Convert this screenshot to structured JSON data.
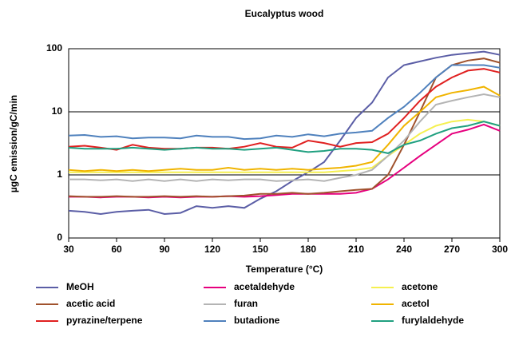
{
  "chart_data": {
    "type": "line",
    "title": "Eucalyptus wood",
    "x_label": "Temperature (°C)",
    "y_label": "µgC emission/gC/min",
    "x": [
      30,
      40,
      50,
      60,
      70,
      80,
      90,
      100,
      110,
      120,
      130,
      140,
      150,
      160,
      170,
      180,
      190,
      200,
      210,
      220,
      230,
      240,
      250,
      260,
      270,
      280,
      290,
      300
    ],
    "xlim": [
      30,
      300
    ],
    "xticks": [
      30,
      60,
      90,
      120,
      150,
      180,
      210,
      240,
      270,
      300
    ],
    "ylim": [
      0.1,
      100
    ],
    "yticks": [
      {
        "value": 0.1,
        "label": "0"
      },
      1,
      10,
      100
    ],
    "log_y": true,
    "grid": true,
    "series": [
      {
        "name": "MeOH",
        "color": "#5b5ea6",
        "values": [
          0.27,
          0.26,
          0.24,
          0.26,
          0.27,
          0.28,
          0.24,
          0.25,
          0.32,
          0.3,
          0.32,
          0.3,
          0.42,
          0.55,
          0.8,
          1.1,
          1.6,
          3.5,
          8,
          14,
          35,
          55,
          63,
          72,
          80,
          85,
          90,
          80
        ]
      },
      {
        "name": "acetaldehyde",
        "color": "#e6007e",
        "values": [
          0.45,
          0.45,
          0.44,
          0.45,
          0.45,
          0.44,
          0.45,
          0.44,
          0.45,
          0.45,
          0.46,
          0.45,
          0.46,
          0.48,
          0.5,
          0.5,
          0.5,
          0.5,
          0.52,
          0.6,
          0.85,
          1.3,
          2,
          3,
          4.5,
          5.2,
          6.3,
          5
        ]
      },
      {
        "name": "acetone",
        "color": "#f5f050",
        "values": [
          1.1,
          1.1,
          1.1,
          1.1,
          1.1,
          1.1,
          1.1,
          1.1,
          1.1,
          1.1,
          1.1,
          1.1,
          1.1,
          1.1,
          1.1,
          1.1,
          1.1,
          1.15,
          1.2,
          1.3,
          2,
          3,
          4.5,
          6,
          7,
          7.5,
          7,
          6
        ]
      },
      {
        "name": "acetic acid",
        "color": "#a0522d",
        "values": [
          0.46,
          0.45,
          0.45,
          0.46,
          0.45,
          0.45,
          0.46,
          0.45,
          0.46,
          0.45,
          0.46,
          0.47,
          0.5,
          0.5,
          0.52,
          0.5,
          0.52,
          0.55,
          0.58,
          0.6,
          1,
          3,
          10,
          35,
          55,
          65,
          70,
          60
        ]
      },
      {
        "name": "furan",
        "color": "#b4b4b4",
        "values": [
          0.85,
          0.85,
          0.82,
          0.85,
          0.8,
          0.85,
          0.8,
          0.85,
          0.8,
          0.85,
          0.82,
          0.85,
          0.85,
          0.8,
          0.82,
          0.85,
          0.8,
          0.9,
          1,
          1.2,
          2,
          3.5,
          7,
          13,
          15,
          17,
          19,
          17
        ]
      },
      {
        "name": "acetol",
        "color": "#f0b400",
        "values": [
          1.2,
          1.15,
          1.2,
          1.15,
          1.2,
          1.15,
          1.2,
          1.25,
          1.2,
          1.2,
          1.3,
          1.2,
          1.25,
          1.2,
          1.25,
          1.2,
          1.25,
          1.3,
          1.4,
          1.6,
          3,
          6,
          10,
          17,
          20,
          22,
          25,
          18
        ]
      },
      {
        "name": "pyrazine/terpene",
        "color": "#e02020",
        "values": [
          2.8,
          2.9,
          2.7,
          2.5,
          3,
          2.7,
          2.6,
          2.6,
          2.7,
          2.7,
          2.6,
          2.8,
          3.2,
          2.8,
          2.7,
          3.5,
          3.2,
          2.8,
          3.2,
          3.3,
          4.5,
          8,
          15,
          25,
          35,
          45,
          48,
          42
        ]
      },
      {
        "name": "butadione",
        "color": "#4f81bd",
        "values": [
          4.2,
          4.3,
          4,
          4.1,
          3.8,
          3.9,
          3.9,
          3.8,
          4.2,
          4,
          4,
          3.7,
          3.8,
          4.2,
          4,
          4.4,
          4.1,
          4.5,
          4.7,
          5,
          8,
          12,
          20,
          35,
          55,
          55,
          55,
          50
        ]
      },
      {
        "name": "furylaldehyde",
        "color": "#20a080",
        "values": [
          2.7,
          2.6,
          2.6,
          2.6,
          2.7,
          2.6,
          2.5,
          2.6,
          2.7,
          2.6,
          2.6,
          2.5,
          2.6,
          2.7,
          2.5,
          2.3,
          2.4,
          2.6,
          2.6,
          2.5,
          2.2,
          3,
          3.5,
          4.5,
          5.5,
          6,
          7,
          6
        ]
      }
    ]
  }
}
